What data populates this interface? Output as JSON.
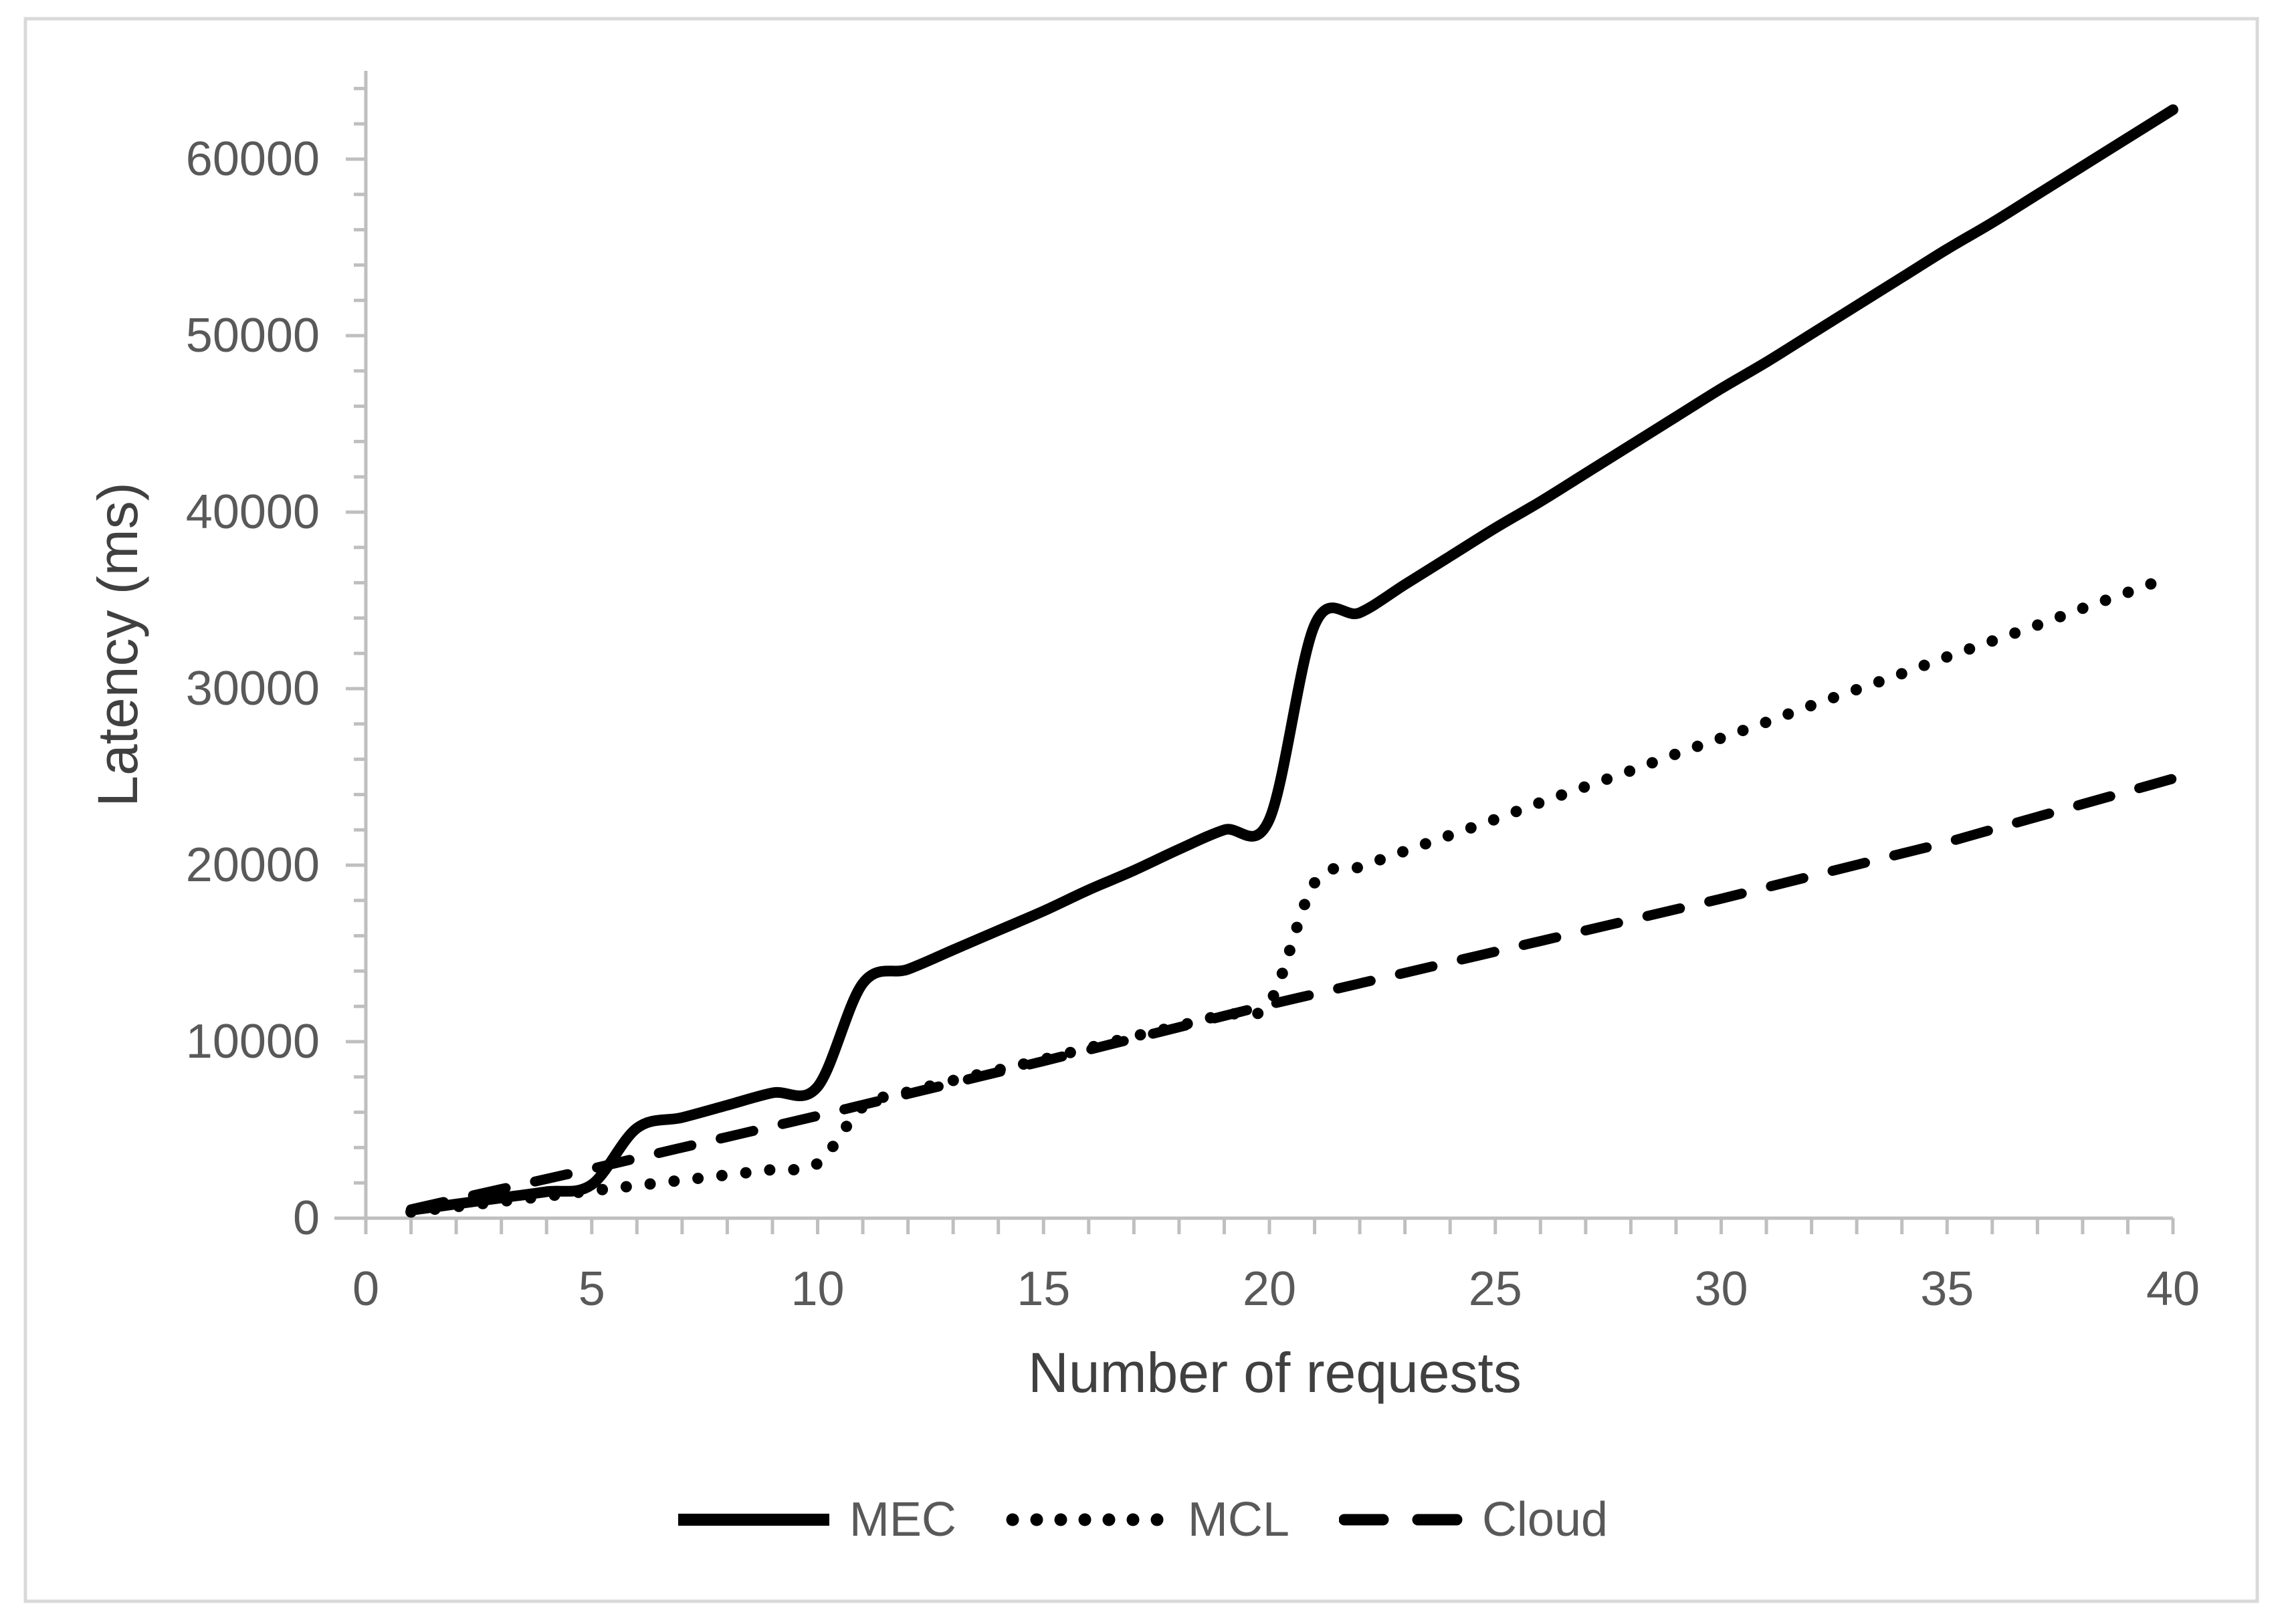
{
  "figure": {
    "background": "#ffffff",
    "border_color": "#d9d9d9",
    "axis_line_color": "#bfbfbf",
    "tick_label_color": "#595959",
    "title_color": "#404040",
    "series_color": "#000000"
  },
  "chart_data": {
    "type": "line",
    "title": "",
    "xlabel": "Number of requests",
    "ylabel": "Latency (ms)",
    "xlim": [
      0,
      40
    ],
    "ylim": [
      0,
      65000
    ],
    "x_ticks": [
      0,
      5,
      10,
      15,
      20,
      25,
      30,
      35,
      40
    ],
    "x_minor_step": 1,
    "y_ticks": [
      0,
      10000,
      20000,
      30000,
      40000,
      50000,
      60000
    ],
    "y_minor_step": 2000,
    "grid": "off",
    "legend_position": "bottom",
    "x": [
      1,
      2,
      3,
      4,
      5,
      6,
      7,
      8,
      9,
      10,
      11,
      12,
      13,
      14,
      15,
      16,
      17,
      18,
      19,
      20,
      21,
      22,
      23,
      24,
      25,
      26,
      27,
      28,
      29,
      30,
      31,
      32,
      33,
      34,
      35,
      36,
      37,
      38,
      39,
      40
    ],
    "series": [
      {
        "name": "MEC",
        "line_style": "solid",
        "color": "#000000",
        "values": [
          450,
          800,
          1150,
          1500,
          1900,
          5100,
          5700,
          6400,
          7100,
          7450,
          13300,
          14100,
          15200,
          16300,
          17400,
          18600,
          19700,
          20900,
          22000,
          22600,
          33600,
          34300,
          35900,
          37500,
          39100,
          40600,
          42200,
          43800,
          45400,
          47000,
          48500,
          50100,
          51700,
          53300,
          54900,
          56400,
          58000,
          59600,
          61200,
          62800
        ]
      },
      {
        "name": "MCL",
        "line_style": "dotted",
        "color": "#000000",
        "values": [
          350,
          650,
          950,
          1250,
          1550,
          1850,
          2150,
          2450,
          2750,
          3100,
          6300,
          7150,
          7800,
          8400,
          9000,
          9650,
          10300,
          10900,
          11550,
          12200,
          19000,
          19900,
          20800,
          21700,
          22600,
          23550,
          24450,
          25350,
          26300,
          27200,
          28100,
          29050,
          29950,
          30850,
          31800,
          32700,
          33600,
          34550,
          35450,
          36400
        ]
      },
      {
        "name": "Cloud",
        "line_style": "dashed",
        "color": "#000000",
        "values": [
          500,
          1075,
          1650,
          2225,
          2800,
          3400,
          4000,
          4600,
          5200,
          5800,
          6420,
          7040,
          7660,
          8280,
          8900,
          9540,
          10180,
          10820,
          11460,
          12100,
          12700,
          13300,
          13900,
          14500,
          15100,
          15700,
          16300,
          16900,
          17500,
          18100,
          18740,
          19380,
          20020,
          20660,
          21300,
          22020,
          22740,
          23460,
          24180,
          24900
        ]
      }
    ]
  }
}
